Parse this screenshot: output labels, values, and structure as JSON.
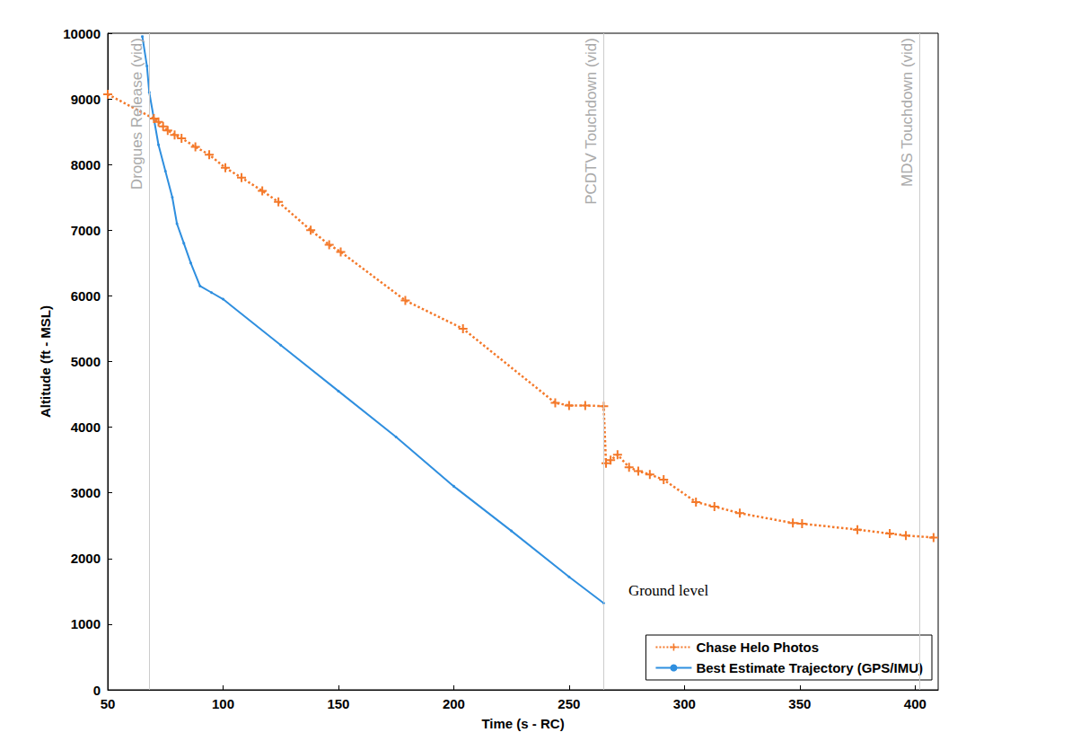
{
  "chart_data": {
    "type": "line",
    "x_label": "Time (s - RC)",
    "y_label": "Altitude (ft - MSL)",
    "xlim": [
      50,
      410
    ],
    "xticks": [
      50,
      100,
      150,
      200,
      250,
      300,
      350,
      400
    ],
    "ylim": [
      0,
      10000
    ],
    "yticks": [
      0,
      1000,
      2000,
      3000,
      4000,
      5000,
      6000,
      7000,
      8000,
      9000,
      10000
    ],
    "grid": false,
    "legend": "lower right",
    "series": [
      {
        "name": "Chase Helo Photos",
        "color": "#f4792a",
        "line_style": "dotted",
        "marker": "plus",
        "x": [
          50,
          70,
          72,
          74,
          76,
          79,
          82,
          88,
          94,
          101,
          108,
          117,
          124,
          138,
          146,
          151,
          179,
          204,
          244,
          250,
          257,
          265,
          266,
          268,
          271,
          276,
          280,
          285,
          291,
          305,
          313,
          324,
          347,
          351,
          375,
          389,
          396,
          408
        ],
        "values": [
          9070,
          8700,
          8650,
          8580,
          8520,
          8450,
          8400,
          8270,
          8150,
          7950,
          7800,
          7600,
          7430,
          7000,
          6780,
          6670,
          5930,
          5500,
          4370,
          4330,
          4330,
          4320,
          3450,
          3500,
          3580,
          3390,
          3330,
          3280,
          3200,
          2860,
          2790,
          2690,
          2540,
          2530,
          2440,
          2380,
          2350,
          2320
        ]
      },
      {
        "name": "Best Estimate Trajectory (GPS/IMU)",
        "color": "#2f8fdf",
        "line_style": "solid",
        "marker": "circle",
        "x": [
          65,
          67,
          68,
          70,
          72,
          75,
          78,
          80,
          83,
          86,
          90,
          95,
          100,
          125,
          150,
          175,
          200,
          225,
          250,
          265
        ],
        "values": [
          9950,
          9500,
          9100,
          8700,
          8300,
          7900,
          7500,
          7100,
          6800,
          6500,
          6150,
          6050,
          5950,
          5250,
          4550,
          3850,
          3100,
          2420,
          1720,
          1320
        ]
      }
    ],
    "annotations": [
      {
        "text": "Drogues Release (vid)",
        "x": 68
      },
      {
        "text": "PCDTV Touchdown (vid)",
        "x": 265
      },
      {
        "text": "MDS Touchdown (vid)",
        "x": 402
      },
      {
        "text": "Ground level",
        "x": 265,
        "y": 1320
      }
    ]
  }
}
